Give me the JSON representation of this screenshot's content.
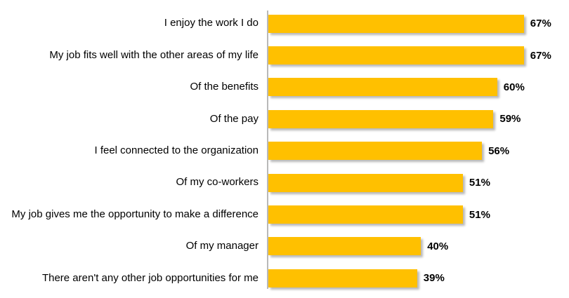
{
  "chart_data": {
    "type": "bar",
    "orientation": "horizontal",
    "title": "",
    "xlabel": "",
    "ylabel": "",
    "grid": false,
    "legend": false,
    "axis_line_color": "#b9b9b9",
    "bar_color": "#FFC000",
    "shadow_color": "#b9b9b9",
    "xlim": [
      0,
      79
    ],
    "categories": [
      "I enjoy the work I do",
      "My job fits well with the other areas of my life",
      "Of the benefits",
      "Of the pay",
      "I feel connected to the organization",
      "Of my co-workers",
      "My job gives me the opportunity to make a difference",
      "Of my manager",
      "There aren't any other job opportunities for me"
    ],
    "values": [
      67,
      67,
      60,
      59,
      56,
      51,
      51,
      40,
      39
    ],
    "value_labels": [
      "67%",
      "67%",
      "60%",
      "59%",
      "56%",
      "51%",
      "51%",
      "40%",
      "39%"
    ]
  }
}
